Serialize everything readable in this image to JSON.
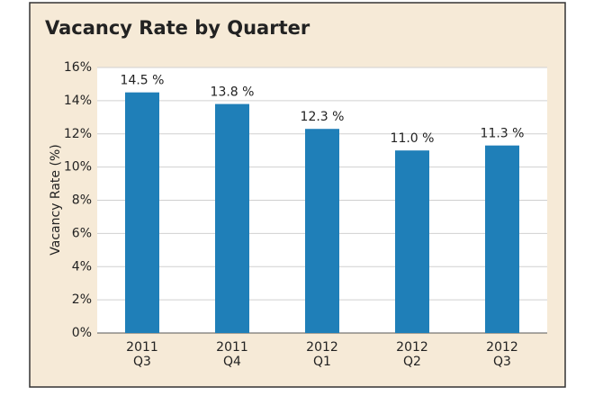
{
  "chart_data": {
    "type": "bar",
    "title": "Vacancy Rate by Quarter",
    "y_label": "Vacancy Rate (%)",
    "categories": [
      "2011 Q3",
      "2011 Q4",
      "2012 Q1",
      "2012 Q2",
      "2012 Q3"
    ],
    "values": [
      14.5,
      13.8,
      12.3,
      11.0,
      11.3
    ],
    "value_labels": [
      "14.5 %",
      "13.8 %",
      "12.3 %",
      "11.0 %",
      "11.3 %"
    ],
    "color": "#1f7fb8",
    "ylim": [
      0,
      16
    ],
    "yticks": [
      {
        "value": 0,
        "label": "0%"
      },
      {
        "value": 2,
        "label": "2%"
      },
      {
        "value": 4,
        "label": "4%"
      },
      {
        "value": 6,
        "label": "6%"
      },
      {
        "value": 8,
        "label": "8%"
      },
      {
        "value": 10,
        "label": "10%"
      },
      {
        "value": 12,
        "label": "12%"
      },
      {
        "value": 14,
        "label": "14%"
      },
      {
        "value": 16,
        "label": "16%"
      }
    ],
    "grid": true
  }
}
